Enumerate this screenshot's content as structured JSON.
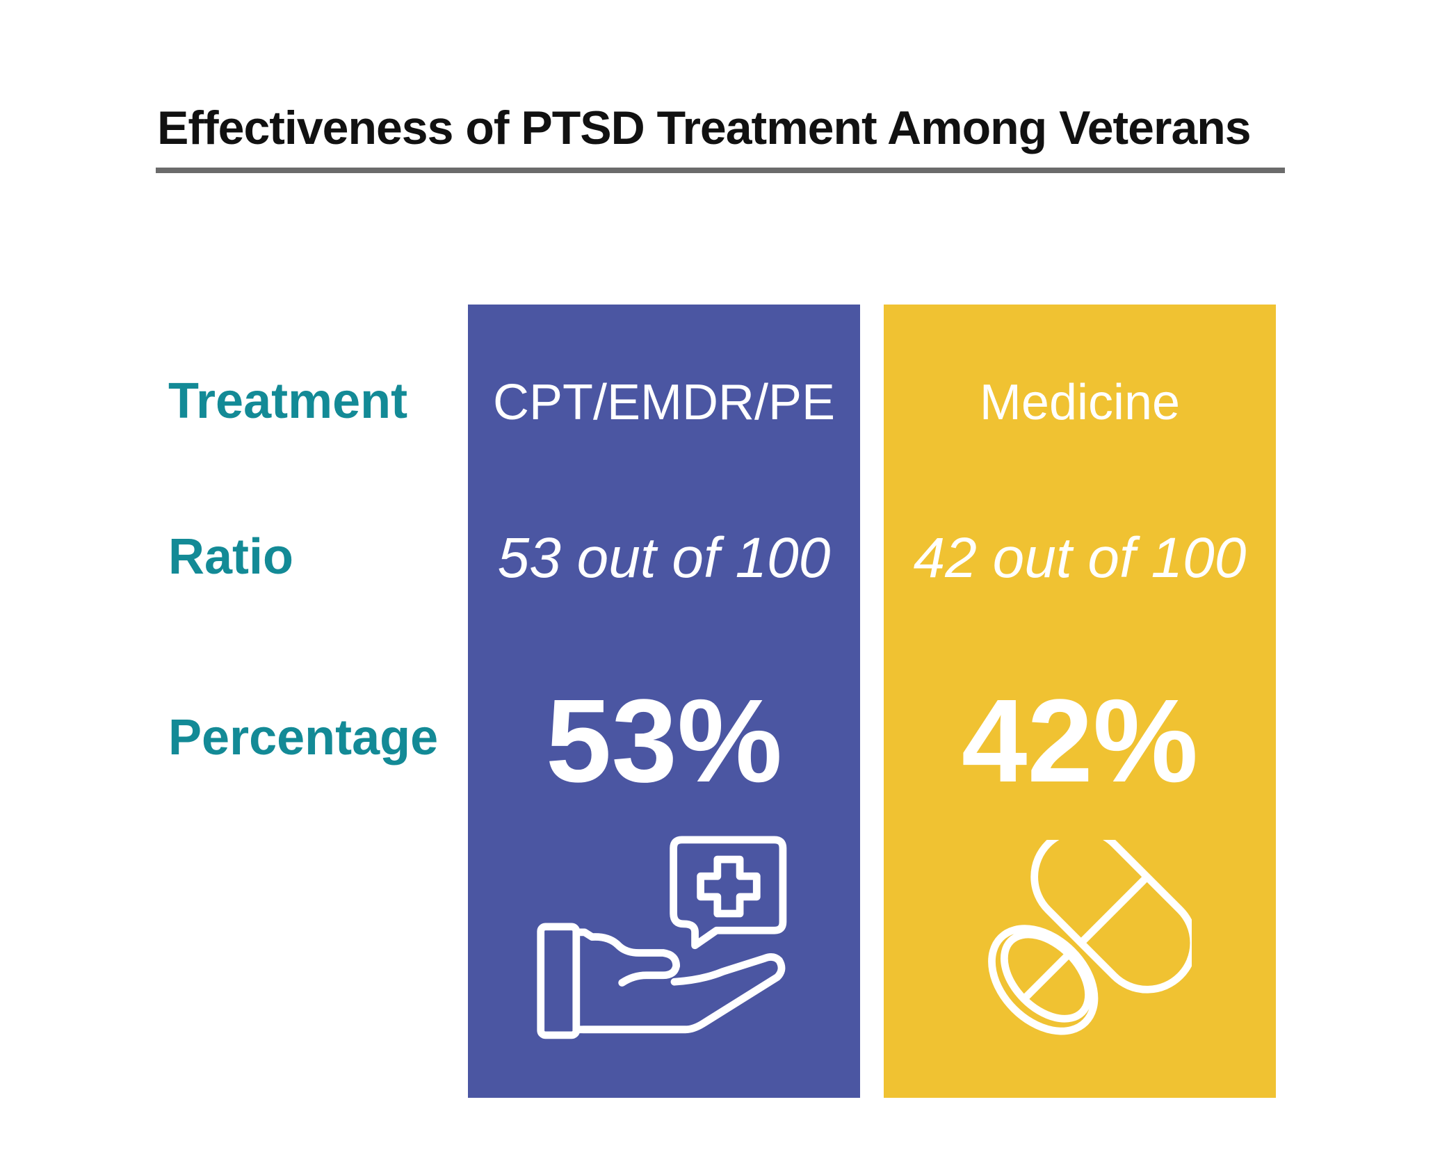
{
  "title": "Effectiveness of PTSD Treatment Among Veterans",
  "row_labels": {
    "treatment": "Treatment",
    "ratio": "Ratio",
    "percentage": "Percentage"
  },
  "columns": [
    {
      "treatment": "CPT/EMDR/PE",
      "ratio": "53 out of 100",
      "percentage": "53%",
      "color": "#4B56A2",
      "icon": "hand-medical-icon"
    },
    {
      "treatment": "Medicine",
      "ratio": "42 out of 100",
      "percentage": "42%",
      "color": "#F0C232",
      "icon": "pills-icon"
    }
  ],
  "colors": {
    "label": "#138A96",
    "title": "#111111",
    "rule": "#6b6b6b"
  }
}
